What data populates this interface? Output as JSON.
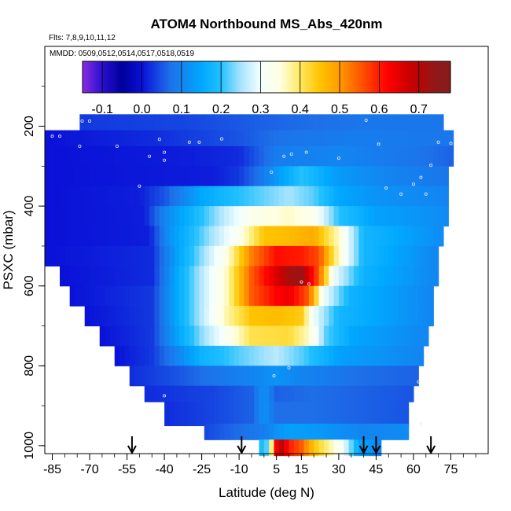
{
  "chart_data": {
    "type": "heatmap",
    "title": "ATOM4 Northbound MS_Abs_420nm",
    "notes": [
      "Flts: 7,8,9,10,11,12",
      "MMDD: 0509,0512,0514,0517,0518,0519"
    ],
    "xlabel": "Latitude (deg N)",
    "ylabel": "PSXC (mbar)",
    "xlim": [
      -88,
      90
    ],
    "ylim": [
      1020,
      0
    ],
    "x_ticks": [
      -85,
      -70,
      -55,
      -40,
      -25,
      -10,
      5,
      15,
      30,
      45,
      60,
      75
    ],
    "y_ticks": [
      200,
      400,
      600,
      800,
      1000
    ],
    "colorbar": {
      "range": [
        -0.15,
        0.78
      ],
      "ticks": [
        -0.1,
        0.0,
        0.1,
        0.2,
        0.3,
        0.4,
        0.5,
        0.6,
        0.7
      ],
      "tick_labels": [
        "-0.1",
        "0.0",
        "0.1",
        "0.2",
        "0.3",
        "0.4",
        "0.5",
        "0.6",
        "0.7"
      ],
      "stops": [
        {
          "v": -0.15,
          "color": "#8a2be2"
        },
        {
          "v": -0.1,
          "color": "#2a0fd0"
        },
        {
          "v": -0.05,
          "color": "#00009a"
        },
        {
          "v": 0.0,
          "color": "#0a10d8"
        },
        {
          "v": 0.07,
          "color": "#1e6fe8"
        },
        {
          "v": 0.15,
          "color": "#00a8ff"
        },
        {
          "v": 0.2,
          "color": "#22c0ff"
        },
        {
          "v": 0.25,
          "color": "#a9e4ff"
        },
        {
          "v": 0.3,
          "color": "#f4ffff"
        },
        {
          "v": 0.35,
          "color": "#ffffe0"
        },
        {
          "v": 0.4,
          "color": "#ffe860"
        },
        {
          "v": 0.45,
          "color": "#ffc400"
        },
        {
          "v": 0.5,
          "color": "#ff9a00"
        },
        {
          "v": 0.55,
          "color": "#ff5a00"
        },
        {
          "v": 0.62,
          "color": "#ff0000"
        },
        {
          "v": 0.68,
          "color": "#c80000"
        },
        {
          "v": 0.75,
          "color": "#8b1a1a"
        }
      ]
    },
    "layers": [
      {
        "p": 190,
        "dp": 40,
        "lat_min": -74,
        "lat_max": 72,
        "profile": [
          [
            -74,
            0.03
          ],
          [
            -30,
            0.04
          ],
          [
            0,
            0.06
          ],
          [
            40,
            0.08
          ],
          [
            72,
            0.08
          ]
        ]
      },
      {
        "p": 230,
        "dp": 40,
        "lat_min": -88,
        "lat_max": 76,
        "profile": [
          [
            -88,
            0.0
          ],
          [
            -45,
            0.02
          ],
          [
            -10,
            0.05
          ],
          [
            10,
            0.08
          ],
          [
            40,
            0.09
          ],
          [
            76,
            0.08
          ]
        ]
      },
      {
        "p": 275,
        "dp": 50,
        "lat_min": -88,
        "lat_max": 76,
        "profile": [
          [
            -88,
            0.0
          ],
          [
            -30,
            0.01
          ],
          [
            -10,
            0.02
          ],
          [
            5,
            0.09
          ],
          [
            30,
            0.1
          ],
          [
            60,
            0.08
          ],
          [
            76,
            0.06
          ]
        ]
      },
      {
        "p": 325,
        "dp": 50,
        "lat_min": -88,
        "lat_max": 74,
        "profile": [
          [
            -88,
            0.0
          ],
          [
            -20,
            0.01
          ],
          [
            -10,
            0.03
          ],
          [
            0,
            0.09
          ],
          [
            15,
            0.2
          ],
          [
            30,
            0.13
          ],
          [
            50,
            0.1
          ],
          [
            74,
            0.08
          ]
        ]
      },
      {
        "p": 375,
        "dp": 50,
        "lat_min": -88,
        "lat_max": 74,
        "profile": [
          [
            -88,
            0.0
          ],
          [
            -50,
            0.01
          ],
          [
            -40,
            0.05
          ],
          [
            -25,
            0.15
          ],
          [
            -10,
            0.2
          ],
          [
            10,
            0.25
          ],
          [
            20,
            0.22
          ],
          [
            30,
            0.15
          ],
          [
            45,
            0.12
          ],
          [
            74,
            0.1
          ]
        ]
      },
      {
        "p": 425,
        "dp": 50,
        "lat_min": -88,
        "lat_max": 74,
        "profile": [
          [
            -88,
            0.0
          ],
          [
            -48,
            0.01
          ],
          [
            -40,
            0.1
          ],
          [
            -25,
            0.2
          ],
          [
            -15,
            0.27
          ],
          [
            -5,
            0.33
          ],
          [
            10,
            0.36
          ],
          [
            20,
            0.33
          ],
          [
            30,
            0.2
          ],
          [
            45,
            0.14
          ],
          [
            74,
            0.11
          ]
        ]
      },
      {
        "p": 475,
        "dp": 50,
        "lat_min": -88,
        "lat_max": 72,
        "profile": [
          [
            -88,
            0.0
          ],
          [
            -46,
            0.01
          ],
          [
            -38,
            0.12
          ],
          [
            -25,
            0.22
          ],
          [
            -10,
            0.33
          ],
          [
            0,
            0.45
          ],
          [
            10,
            0.46
          ],
          [
            20,
            0.48
          ],
          [
            30,
            0.36
          ],
          [
            40,
            0.18
          ],
          [
            72,
            0.11
          ]
        ]
      },
      {
        "p": 525,
        "dp": 50,
        "lat_min": -88,
        "lat_max": 70,
        "profile": [
          [
            -88,
            0.0
          ],
          [
            -45,
            0.02
          ],
          [
            -35,
            0.14
          ],
          [
            -25,
            0.24
          ],
          [
            -15,
            0.34
          ],
          [
            -5,
            0.52
          ],
          [
            5,
            0.61
          ],
          [
            15,
            0.6
          ],
          [
            22,
            0.56
          ],
          [
            30,
            0.36
          ],
          [
            40,
            0.18
          ],
          [
            70,
            0.1
          ]
        ]
      },
      {
        "p": 575,
        "dp": 50,
        "lat_min": -82,
        "lat_max": 70,
        "profile": [
          [
            -82,
            0.0
          ],
          [
            -45,
            0.02
          ],
          [
            -35,
            0.15
          ],
          [
            -25,
            0.26
          ],
          [
            -15,
            0.36
          ],
          [
            -5,
            0.55
          ],
          [
            5,
            0.66
          ],
          [
            10,
            0.72
          ],
          [
            15,
            0.73
          ],
          [
            22,
            0.55
          ],
          [
            28,
            0.3
          ],
          [
            40,
            0.17
          ],
          [
            70,
            0.1
          ]
        ]
      },
      {
        "p": 625,
        "dp": 50,
        "lat_min": -78,
        "lat_max": 68,
        "profile": [
          [
            -78,
            0.0
          ],
          [
            -45,
            0.03
          ],
          [
            -35,
            0.15
          ],
          [
            -25,
            0.26
          ],
          [
            -15,
            0.36
          ],
          [
            -5,
            0.55
          ],
          [
            5,
            0.62
          ],
          [
            10,
            0.64
          ],
          [
            18,
            0.55
          ],
          [
            24,
            0.3
          ],
          [
            35,
            0.17
          ],
          [
            68,
            0.1
          ]
        ]
      },
      {
        "p": 675,
        "dp": 50,
        "lat_min": -72,
        "lat_max": 68,
        "profile": [
          [
            -72,
            0.0
          ],
          [
            -45,
            0.03
          ],
          [
            -35,
            0.15
          ],
          [
            -25,
            0.26
          ],
          [
            -15,
            0.37
          ],
          [
            -5,
            0.45
          ],
          [
            5,
            0.46
          ],
          [
            15,
            0.44
          ],
          [
            20,
            0.3
          ],
          [
            30,
            0.18
          ],
          [
            68,
            0.1
          ]
        ]
      },
      {
        "p": 725,
        "dp": 50,
        "lat_min": -66,
        "lat_max": 66,
        "profile": [
          [
            -66,
            0.0
          ],
          [
            -45,
            0.03
          ],
          [
            -35,
            0.14
          ],
          [
            -25,
            0.24
          ],
          [
            -15,
            0.32
          ],
          [
            -5,
            0.41
          ],
          [
            10,
            0.42
          ],
          [
            18,
            0.36
          ],
          [
            25,
            0.22
          ],
          [
            35,
            0.15
          ],
          [
            66,
            0.1
          ]
        ]
      },
      {
        "p": 775,
        "dp": 50,
        "lat_min": -60,
        "lat_max": 64,
        "profile": [
          [
            -60,
            0.0
          ],
          [
            -45,
            0.03
          ],
          [
            -35,
            0.1
          ],
          [
            -25,
            0.17
          ],
          [
            -10,
            0.22
          ],
          [
            5,
            0.26
          ],
          [
            15,
            0.22
          ],
          [
            30,
            0.14
          ],
          [
            64,
            0.1
          ]
        ]
      },
      {
        "p": 825,
        "dp": 50,
        "lat_min": -54,
        "lat_max": 62,
        "profile": [
          [
            -54,
            0.02
          ],
          [
            -35,
            0.05
          ],
          [
            -20,
            0.08
          ],
          [
            -5,
            0.1
          ],
          [
            5,
            0.12
          ],
          [
            15,
            0.1
          ],
          [
            40,
            0.07
          ],
          [
            62,
            0.06
          ]
        ]
      },
      {
        "p": 870,
        "dp": 40,
        "lat_min": -48,
        "lat_max": 60,
        "profile": [
          [
            -48,
            0.02
          ],
          [
            -20,
            0.04
          ],
          [
            -5,
            0.06
          ],
          [
            0,
            0.12
          ],
          [
            5,
            0.06
          ],
          [
            20,
            0.07
          ],
          [
            40,
            0.06
          ],
          [
            60,
            0.05
          ]
        ]
      },
      {
        "p": 920,
        "dp": 60,
        "lat_min": -40,
        "lat_max": 58,
        "profile": [
          [
            -40,
            0.02
          ],
          [
            -20,
            0.04
          ],
          [
            -5,
            0.06
          ],
          [
            0,
            0.12
          ],
          [
            5,
            0.07
          ],
          [
            20,
            0.07
          ],
          [
            40,
            0.06
          ],
          [
            58,
            0.05
          ]
        ]
      },
      {
        "p": 965,
        "dp": 40,
        "lat_min": -24,
        "lat_max": 58,
        "profile": [
          [
            -24,
            0.04
          ],
          [
            -10,
            0.07
          ],
          [
            0,
            0.09
          ],
          [
            5,
            0.12
          ],
          [
            10,
            0.14
          ],
          [
            20,
            0.13
          ],
          [
            40,
            0.1
          ],
          [
            58,
            0.11
          ]
        ]
      },
      {
        "p": 1005,
        "dp": 40,
        "lat_min": -2,
        "lat_max": 47,
        "profile": [
          [
            -2,
            0.18
          ],
          [
            2,
            0.23
          ],
          [
            4,
            0.55
          ],
          [
            6,
            0.72
          ],
          [
            10,
            0.6
          ],
          [
            15,
            0.55
          ],
          [
            20,
            0.45
          ],
          [
            26,
            0.38
          ],
          [
            32,
            0.3
          ],
          [
            38,
            0.15
          ],
          [
            47,
            0.1
          ]
        ]
      }
    ],
    "profile_locations": [
      -53,
      -9,
      40,
      45,
      67
    ],
    "points": [
      [
        -73,
        187
      ],
      [
        -70,
        187
      ],
      [
        -82,
        225
      ],
      [
        -74,
        250
      ],
      [
        -59,
        250
      ],
      [
        -42,
        233
      ],
      [
        -46,
        275
      ],
      [
        -40,
        265
      ],
      [
        -40,
        285
      ],
      [
        -30,
        240
      ],
      [
        -26,
        240
      ],
      [
        -17,
        232
      ],
      [
        -50,
        350
      ],
      [
        3,
        315
      ],
      [
        8,
        275
      ],
      [
        11,
        270
      ],
      [
        17,
        265
      ],
      [
        30,
        280
      ],
      [
        49,
        355
      ],
      [
        55,
        370
      ],
      [
        60,
        345
      ],
      [
        63,
        328
      ],
      [
        65,
        370
      ],
      [
        67,
        298
      ],
      [
        41,
        185
      ],
      [
        -85,
        225
      ],
      [
        15,
        590
      ],
      [
        70,
        240
      ],
      [
        4,
        825
      ],
      [
        10,
        805
      ],
      [
        62,
        840
      ],
      [
        -40,
        875
      ],
      [
        63,
        945
      ],
      [
        18,
        595
      ],
      [
        46,
        245
      ],
      [
        75,
        243
      ]
    ]
  }
}
